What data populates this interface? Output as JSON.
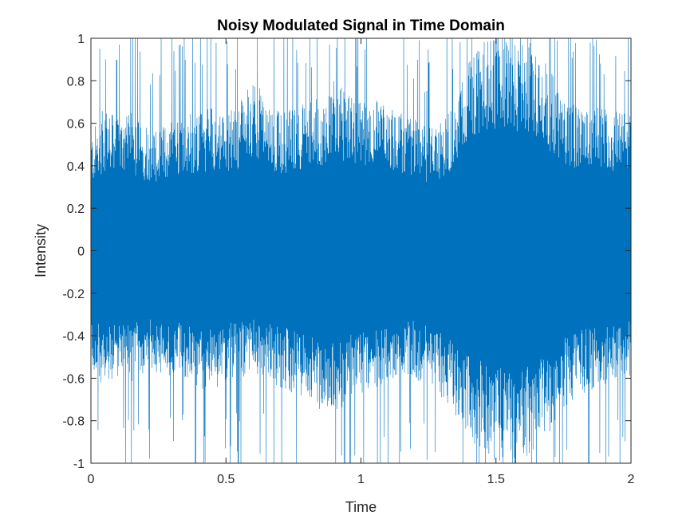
{
  "chart_data": {
    "type": "line",
    "title": "Noisy Modulated Signal in Time Domain",
    "xlabel": "Time",
    "ylabel": "Intensity",
    "xlim": [
      0,
      2
    ],
    "ylim": [
      -1,
      1
    ],
    "xticks": [
      0,
      0.5,
      1,
      1.5,
      2
    ],
    "xtick_labels": [
      "0",
      "0.5",
      "1",
      "1.5",
      "2"
    ],
    "yticks": [
      -1,
      -0.8,
      -0.6,
      -0.4,
      -0.2,
      0,
      0.2,
      0.4,
      0.6,
      0.8,
      1
    ],
    "ytick_labels": [
      "-1",
      "-0.8",
      "-0.6",
      "-0.4",
      "-0.2",
      "0",
      "0.2",
      "0.4",
      "0.6",
      "0.8",
      "1"
    ],
    "grid": false,
    "line_color": "#0072BD",
    "series": [
      {
        "envelope": {
          "x": [
            0,
            0.05,
            0.1,
            0.15,
            0.2,
            0.25,
            0.3,
            0.35,
            0.4,
            0.45,
            0.5,
            0.55,
            0.6,
            0.65,
            0.7,
            0.75,
            0.8,
            0.85,
            0.9,
            0.95,
            1.0,
            1.05,
            1.1,
            1.15,
            1.2,
            1.25,
            1.3,
            1.35,
            1.4,
            1.45,
            1.5,
            1.55,
            1.6,
            1.65,
            1.7,
            1.75,
            1.8,
            1.85,
            1.9,
            1.95,
            2.0
          ],
          "upper": [
            0.55,
            0.68,
            0.62,
            0.65,
            0.6,
            0.58,
            0.62,
            0.66,
            0.65,
            0.7,
            0.65,
            0.7,
            0.82,
            0.72,
            0.65,
            0.68,
            0.7,
            0.72,
            0.8,
            0.75,
            0.7,
            0.72,
            0.68,
            0.66,
            0.62,
            0.58,
            0.62,
            0.72,
            0.9,
            1.0,
            1.0,
            1.0,
            1.0,
            0.98,
            0.85,
            0.75,
            0.68,
            0.7,
            0.68,
            0.66,
            0.65
          ],
          "lower": [
            -0.55,
            -0.68,
            -0.6,
            -0.62,
            -0.58,
            -0.57,
            -0.6,
            -0.62,
            -0.65,
            -0.68,
            -0.62,
            -0.6,
            -0.58,
            -0.62,
            -0.65,
            -0.68,
            -0.72,
            -0.75,
            -0.78,
            -0.72,
            -0.68,
            -0.65,
            -0.62,
            -0.58,
            -0.6,
            -0.65,
            -0.7,
            -0.78,
            -0.88,
            -0.95,
            -1.0,
            -1.0,
            -1.0,
            -0.95,
            -0.85,
            -0.75,
            -0.68,
            -0.66,
            -0.65,
            -0.62,
            -0.6
          ]
        },
        "spike_max": 1.0,
        "spike_min": -1.0
      }
    ]
  }
}
